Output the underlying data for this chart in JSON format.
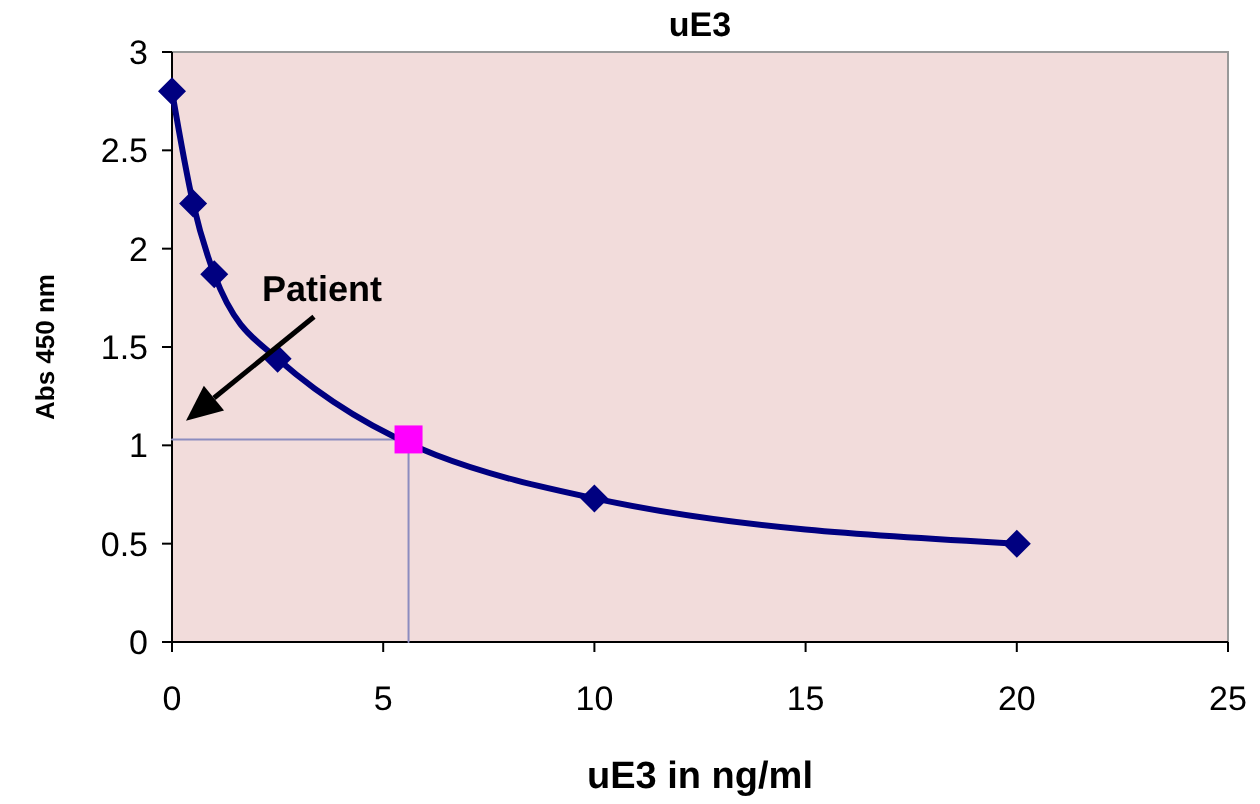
{
  "chart_data": {
    "type": "line",
    "title": "uE3",
    "xlabel": "uE3 in ng/ml",
    "ylabel": "Abs 450 nm",
    "xlim": [
      0,
      25
    ],
    "ylim": [
      0,
      3
    ],
    "xticks": [
      0,
      5,
      10,
      15,
      20,
      25
    ],
    "yticks": [
      0,
      0.5,
      1,
      1.5,
      2,
      2.5,
      3
    ],
    "grid": false,
    "series": [
      {
        "type": "line",
        "color": "#8c8cbf",
        "x": [
          0,
          5.6,
          5.6
        ],
        "values": [
          1.03,
          1.03,
          0
        ],
        "marker": "none"
      },
      {
        "color": "#000080",
        "x": [
          0,
          0.5,
          1,
          2.5,
          10,
          20
        ],
        "values": [
          2.8,
          2.23,
          1.87,
          1.44,
          0.73,
          0.5
        ],
        "marker": "diamond"
      },
      {
        "type": "scatter",
        "color": "#ff00ff",
        "x": [
          5.6
        ],
        "values": [
          1.03
        ],
        "marker": "square"
      }
    ],
    "annotations": [
      "Patient"
    ]
  }
}
